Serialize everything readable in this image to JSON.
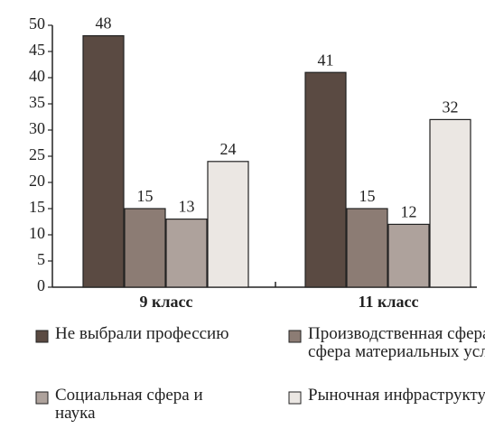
{
  "chart_data": {
    "type": "bar",
    "categories": [
      "9 класс",
      "11 класс"
    ],
    "series": [
      {
        "name": "Не выбрали профессию",
        "color": "#5a4a42",
        "values": [
          48,
          41
        ]
      },
      {
        "name": "Производственная сфера и сфера материальных услуг",
        "color": "#8c7c74",
        "values": [
          15,
          15
        ]
      },
      {
        "name": "Социальная сфера и наука",
        "color": "#aea29c",
        "values": [
          13,
          12
        ]
      },
      {
        "name": "Рыночная инфраструктура",
        "color": "#ebe7e3",
        "values": [
          24,
          32
        ]
      }
    ],
    "ylim": [
      0,
      50
    ],
    "yticks": [
      0,
      5,
      10,
      15,
      20,
      25,
      30,
      35,
      40,
      45,
      50
    ],
    "grid": false,
    "legend": "bottom"
  }
}
